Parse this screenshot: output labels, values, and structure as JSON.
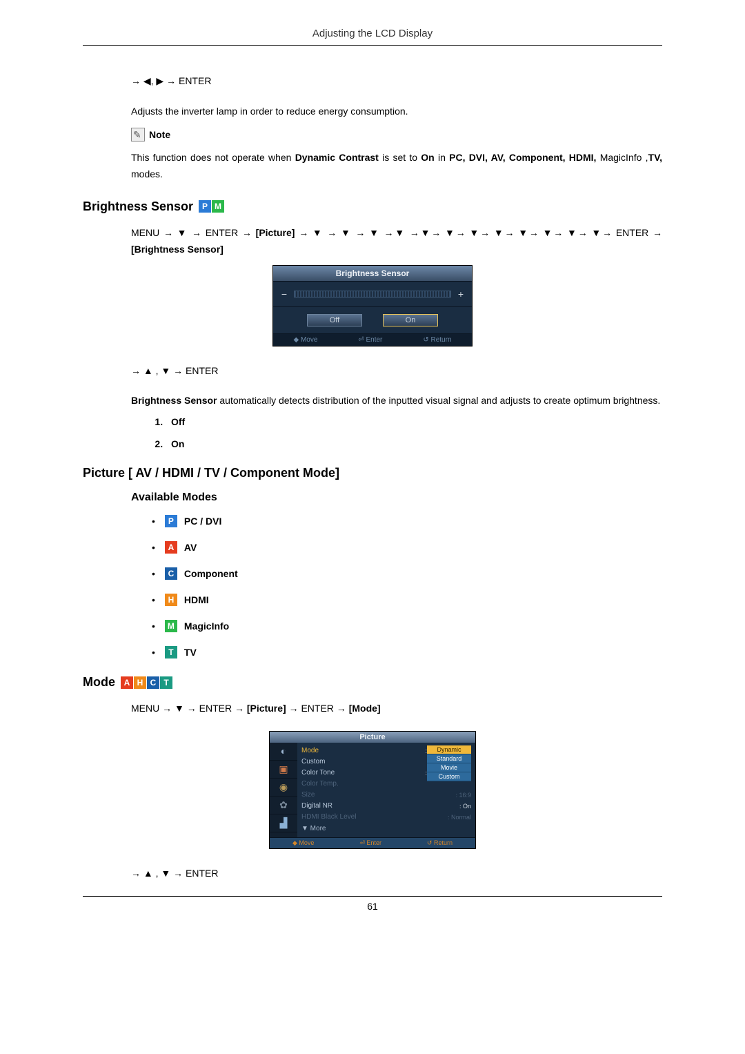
{
  "header": {
    "title": "Adjusting the LCD Display"
  },
  "lamp_saving": {
    "nav": "→ ◀, ▶ → ENTER",
    "desc": "Adjusts the inverter lamp in order to reduce energy consumption.",
    "note_label": "Note",
    "note_text_prefix": "This function does not operate when ",
    "note_dc": "Dynamic Contrast",
    "note_mid": " is set to ",
    "note_on": "On",
    "note_in": " in ",
    "note_modes_bold": "PC, DVI, AV, Component, HDMI,",
    "note_modes_plain": " MagicInfo ,",
    "note_tv": "TV,",
    "note_suffix": " modes."
  },
  "brightness_sensor": {
    "title": "Brightness Sensor",
    "badges": [
      "P",
      "M"
    ],
    "path1_a": "MENU → ▼ → ENTER → ",
    "path1_b": "[Picture]",
    "path1_c": " → ▼ → ▼ → ▼ →▼ →▼→ ▼→ ▼→ ▼→ ▼→ ▼→ ▼→ ▼→ ENTER → ",
    "path1_d": "[Brightness Sensor]",
    "osd": {
      "title": "Brightness Sensor",
      "off": "Off",
      "on": "On",
      "nav_move": "◆ Move",
      "nav_enter": "⏎ Enter",
      "nav_return": "↺ Return"
    },
    "nav2": "→ ▲ , ▼ → ENTER",
    "desc_prefix_bold": "Brightness Sensor",
    "desc_rest": " automatically detects distribution of the inputted visual signal and adjusts to create optimum brightness.",
    "opt1": "Off",
    "opt2": "On"
  },
  "picture_section": {
    "title": "Picture [ AV / HDMI / TV / Component Mode]"
  },
  "available_modes": {
    "title": "Available Modes",
    "items": [
      {
        "badge": "P",
        "label": "PC / DVI"
      },
      {
        "badge": "A",
        "label": "AV"
      },
      {
        "badge": "C",
        "label": "Component"
      },
      {
        "badge": "H",
        "label": "HDMI"
      },
      {
        "badge": "M",
        "label": "MagicInfo"
      },
      {
        "badge": "T",
        "label": "TV"
      }
    ]
  },
  "mode_section": {
    "title": "Mode",
    "badges": [
      "A",
      "H",
      "C",
      "T"
    ],
    "path_a": "MENU → ▼ → ENTER → ",
    "path_b": "[Picture]",
    "path_c": " → ENTER → ",
    "path_d": "[Mode]",
    "osd": {
      "title": "Picture",
      "rows": [
        {
          "label": "Mode",
          "hl": true
        },
        {
          "label": "Custom"
        },
        {
          "label": "Color Tone"
        },
        {
          "label": "Color Temp.",
          "dim": true
        },
        {
          "label": "Size",
          "val": ": 16:9",
          "dim": true
        },
        {
          "label": "Digital NR",
          "val": ": On"
        },
        {
          "label": "HDMI Black Level",
          "val": ": Normal",
          "dim": true
        }
      ],
      "dropdown": [
        "Dynamic",
        "Standard",
        "Movie",
        "Custom"
      ],
      "more": "▼ More",
      "nav_move": "◆ Move",
      "nav_enter": "⏎ Enter",
      "nav_return": "↺ Return"
    },
    "nav2": "→ ▲ , ▼ → ENTER"
  },
  "footer": {
    "page": "61"
  }
}
